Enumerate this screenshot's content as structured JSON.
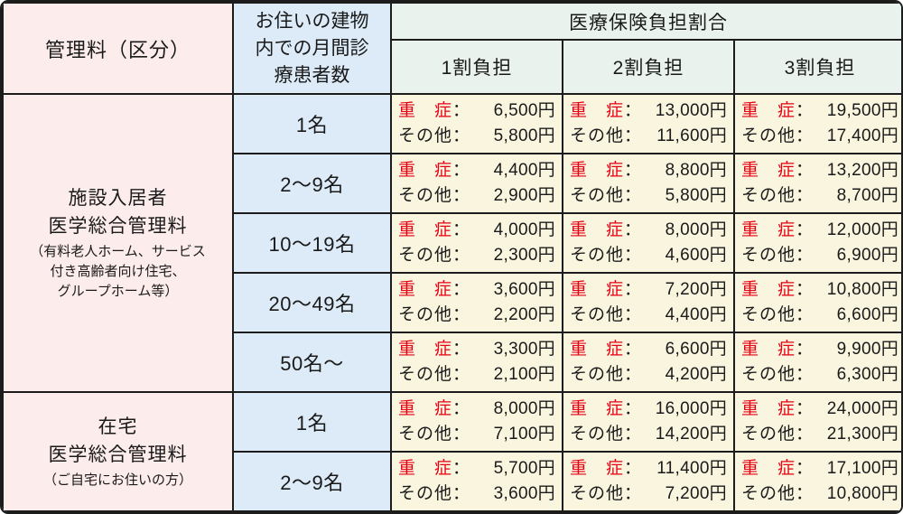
{
  "chart_data": {
    "type": "table",
    "header": {
      "category": "管理料（区分）",
      "patients_lines": [
        "お住いの建物",
        "内での月間診",
        "療患者数"
      ],
      "insurance": "医療保険負担割合",
      "burden_levels": [
        "1割負担",
        "2割負担",
        "3割負担"
      ]
    },
    "labels": {
      "severe": "重　症",
      "other": "その他",
      "colon": "："
    },
    "groups": [
      {
        "title": [
          "施設入居者",
          "医学総合管理料"
        ],
        "note": [
          "（有料老人ホーム、サービス",
          "付き高齢者向け住宅、",
          "グループホーム等）"
        ],
        "rows": [
          {
            "patients": "1名",
            "fees": [
              {
                "severe": "6,500円",
                "other": "5,800円"
              },
              {
                "severe": "13,000円",
                "other": "11,600円"
              },
              {
                "severe": "19,500円",
                "other": "17,400円"
              }
            ]
          },
          {
            "patients": "2〜9名",
            "fees": [
              {
                "severe": "4,400円",
                "other": "2,900円"
              },
              {
                "severe": "8,800円",
                "other": "5,800円"
              },
              {
                "severe": "13,200円",
                "other": "8,700円"
              }
            ]
          },
          {
            "patients": "10〜19名",
            "fees": [
              {
                "severe": "4,000円",
                "other": "2,300円"
              },
              {
                "severe": "8,000円",
                "other": "4,600円"
              },
              {
                "severe": "12,000円",
                "other": "6,900円"
              }
            ]
          },
          {
            "patients": "20〜49名",
            "fees": [
              {
                "severe": "3,600円",
                "other": "2,200円"
              },
              {
                "severe": "7,200円",
                "other": "4,400円"
              },
              {
                "severe": "10,800円",
                "other": "6,600円"
              }
            ]
          },
          {
            "patients": "50名〜",
            "fees": [
              {
                "severe": "3,300円",
                "other": "2,100円"
              },
              {
                "severe": "6,600円",
                "other": "4,200円"
              },
              {
                "severe": "9,900円",
                "other": "6,300円"
              }
            ]
          }
        ]
      },
      {
        "title": [
          "在宅",
          "医学総合管理料"
        ],
        "note": [
          "（ご自宅にお住いの方）"
        ],
        "rows": [
          {
            "patients": "1名",
            "fees": [
              {
                "severe": "8,000円",
                "other": "7,100円"
              },
              {
                "severe": "16,000円",
                "other": "14,200円"
              },
              {
                "severe": "24,000円",
                "other": "21,300円"
              }
            ]
          },
          {
            "patients": "2〜9名",
            "fees": [
              {
                "severe": "5,700円",
                "other": "3,600円"
              },
              {
                "severe": "11,400円",
                "other": "7,200円"
              },
              {
                "severe": "17,100円",
                "other": "10,800円"
              }
            ]
          }
        ]
      }
    ],
    "colors": {
      "category_bg": "#fdecec",
      "patients_bg": "#dcebf7",
      "insurance_bg": "#e9f2ec",
      "fee_bg": "#f9f5df",
      "severe_red": "#e60012",
      "border": "#1c1c1c"
    }
  }
}
